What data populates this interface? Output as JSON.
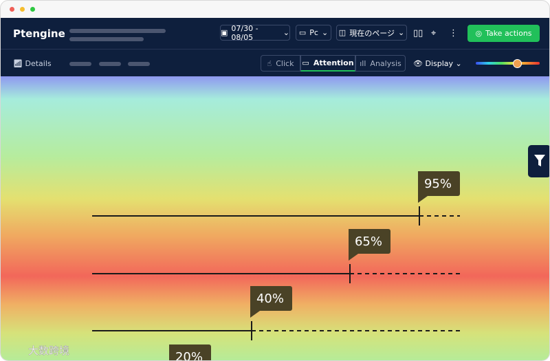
{
  "header": {
    "logo": "Ptengine",
    "date_range": "07/30 - 08/05",
    "device": "Pc",
    "page_selector": "現在のページ",
    "action_button": "Take actions"
  },
  "toolbar": {
    "details": "Details",
    "tabs": [
      "Click",
      "Attention",
      "Analysis"
    ],
    "display": "Display"
  },
  "heatmap": {
    "markers": [
      "95%",
      "65%",
      "40%",
      "20%"
    ]
  },
  "watermark": "大数跨境"
}
